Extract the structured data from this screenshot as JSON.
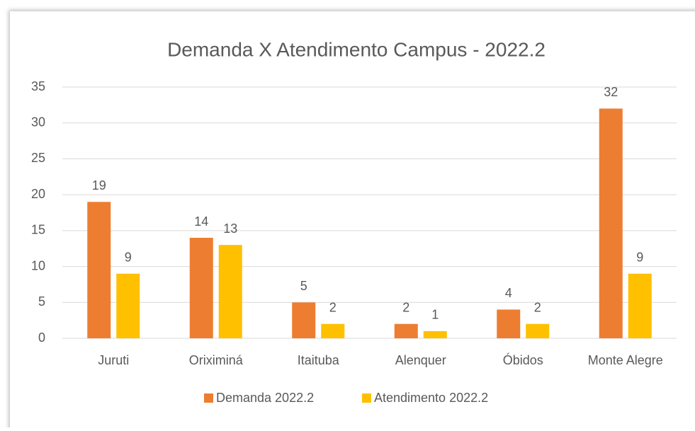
{
  "chart_data": {
    "type": "bar",
    "title": "Demanda X Atendimento Campus - 2022.2",
    "categories": [
      "Juruti",
      "Oriximiná",
      "Itaituba",
      "Alenquer",
      "Óbidos",
      "Monte Alegre"
    ],
    "series": [
      {
        "name": "Demanda 2022.2",
        "color": "#ED7D31",
        "values": [
          19,
          14,
          5,
          2,
          4,
          32
        ]
      },
      {
        "name": "Atendimento 2022.2",
        "color": "#FFC000",
        "values": [
          9,
          13,
          2,
          1,
          2,
          9
        ]
      }
    ],
    "ylim": [
      0,
      35
    ],
    "yticks": [
      0,
      5,
      10,
      15,
      20,
      25,
      30,
      35
    ],
    "grid": true,
    "legend": "bottom"
  }
}
